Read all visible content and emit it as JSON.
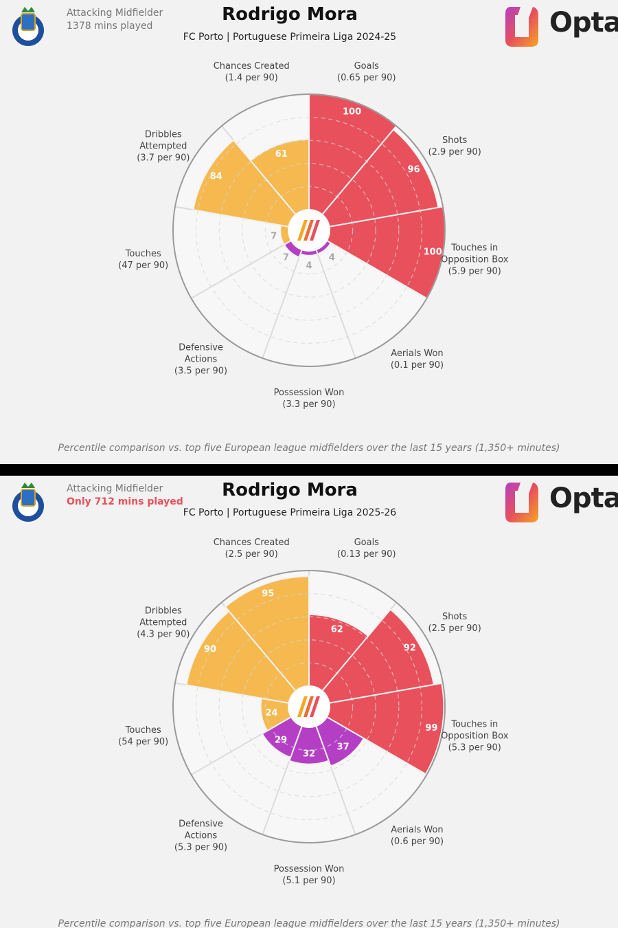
{
  "chart_data": [
    {
      "type": "pizza",
      "title": "Rodrigo Mora",
      "subtitle": "FC Porto | Portuguese Primeira Liga 2024-25",
      "position": "Attacking Midfielder",
      "minutes": "1378 mins played",
      "minutes_color": "#777777",
      "brand": "Opta",
      "footnote": "Percentile comparison vs. top five European league midfielders over the last 15 years (1,350+ minutes)",
      "categories": [
        "Goals",
        "Shots",
        "Touches in Opposition Box",
        "Aerials Won",
        "Possession Won",
        "Defensive Actions",
        "Touches",
        "Dribbles Attempted",
        "Chances Created"
      ],
      "per90": [
        "(0.65 per 90)",
        "(2.9 per 90)",
        "(5.9 per 90)",
        "(0.1 per 90)",
        "(3.3 per 90)",
        "(3.5 per 90)",
        "(47 per 90)",
        "(3.7 per 90)",
        "(1.4 per 90)"
      ],
      "values": [
        100,
        96,
        100,
        4,
        4,
        7,
        7,
        84,
        61
      ],
      "colors": [
        "#e8505c",
        "#e8505c",
        "#e8505c",
        "#b43fc4",
        "#b43fc4",
        "#b43fc4",
        "#f5b94f",
        "#f5b94f",
        "#f5b94f"
      ],
      "ylim": [
        0,
        100
      ],
      "yticks": [
        20,
        40,
        60,
        80
      ]
    },
    {
      "type": "pizza",
      "title": "Rodrigo Mora",
      "subtitle": "FC Porto | Portuguese Primeira Liga 2025-26",
      "position": "Attacking Midfielder",
      "minutes": "Only 712 mins played",
      "minutes_color": "#e8505c",
      "brand": "Opta",
      "footnote": "Percentile comparison vs. top five European league midfielders over the last 15 years (1,350+ minutes)",
      "categories": [
        "Goals",
        "Shots",
        "Touches in Opposition Box",
        "Aerials Won",
        "Possession Won",
        "Defensive Actions",
        "Touches",
        "Dribbles Attempted",
        "Chances Created"
      ],
      "per90": [
        "(0.13 per 90)",
        "(2.5 per 90)",
        "(5.3 per 90)",
        "(0.6 per 90)",
        "(5.1 per 90)",
        "(5.3 per 90)",
        "(54 per 90)",
        "(4.3 per 90)",
        "(2.5 per 90)"
      ],
      "values": [
        62,
        92,
        99,
        37,
        32,
        29,
        24,
        90,
        95
      ],
      "colors": [
        "#e8505c",
        "#e8505c",
        "#e8505c",
        "#b43fc4",
        "#b43fc4",
        "#b43fc4",
        "#f5b94f",
        "#f5b94f",
        "#f5b94f"
      ],
      "ylim": [
        0,
        100
      ],
      "yticks": [
        20,
        40,
        60,
        80
      ]
    }
  ]
}
